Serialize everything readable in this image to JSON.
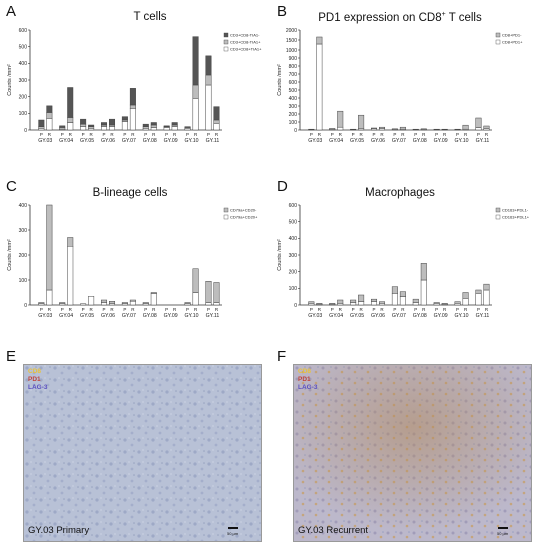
{
  "panels": {
    "A": {
      "letter": "A",
      "title": "T cells"
    },
    "B": {
      "letter": "B",
      "title_prefix": "PD1 expression on CD8",
      "title_sup": "+",
      "title_suffix": " T cells"
    },
    "C": {
      "letter": "C",
      "title": "B-lineage cells"
    },
    "D": {
      "letter": "D",
      "title": "Macrophages"
    },
    "E": {
      "letter": "E",
      "legend": [
        "CD8",
        "PD1",
        "LAG-3"
      ],
      "legend_colors": [
        "#e8c23a",
        "#c0423a",
        "#5a4fc0"
      ],
      "caption": "GY.03 Primary",
      "scale": "50 µm"
    },
    "F": {
      "letter": "F",
      "legend": [
        "CD8",
        "PD1",
        "LAG-3"
      ],
      "legend_colors": [
        "#e8c23a",
        "#c0423a",
        "#5a4fc0"
      ],
      "caption": "GY.03 Recurrent",
      "scale": "50 µm"
    }
  },
  "chart_data": [
    {
      "id": "A",
      "type": "bar",
      "stacked": true,
      "grouped_pairs": true,
      "title": "T cells",
      "ylabel": "Counts /mm²",
      "ylim": [
        0,
        600
      ],
      "yticks": [
        0,
        100,
        200,
        300,
        400,
        500,
        600
      ],
      "groups": [
        "GY.03",
        "GY.04",
        "GY.05",
        "GY.06",
        "GY.07",
        "GY.08",
        "GY.09",
        "GY.10",
        "GY.11"
      ],
      "pair_labels": [
        "P",
        "R"
      ],
      "series": [
        {
          "name": "CD3+CD8+TIA1+",
          "color": "#ffffff",
          "values": [
            [
              10,
              70
            ],
            [
              5,
              45
            ],
            [
              20,
              10
            ],
            [
              20,
              20
            ],
            [
              50,
              130
            ],
            [
              10,
              15
            ],
            [
              15,
              20
            ],
            [
              10,
              190
            ],
            [
              270,
              40
            ]
          ]
        },
        {
          "name": "CD3+CD8-TIA1+",
          "color": "#bdbdbd",
          "values": [
            [
              10,
              35
            ],
            [
              10,
              30
            ],
            [
              15,
              10
            ],
            [
              10,
              10
            ],
            [
              10,
              20
            ],
            [
              10,
              15
            ],
            [
              5,
              10
            ],
            [
              5,
              80
            ],
            [
              60,
              20
            ]
          ]
        },
        {
          "name": "CD3+CD8-TIA1-",
          "color": "#555555",
          "values": [
            [
              40,
              40
            ],
            [
              10,
              180
            ],
            [
              30,
              10
            ],
            [
              15,
              35
            ],
            [
              20,
              100
            ],
            [
              15,
              15
            ],
            [
              5,
              15
            ],
            [
              5,
              290
            ],
            [
              115,
              80
            ]
          ]
        }
      ]
    },
    {
      "id": "B",
      "type": "bar",
      "stacked": true,
      "grouped_pairs": true,
      "title": "PD1 expression on CD8+ T cells",
      "ylabel": "Counts /mm²",
      "ylim": [
        0,
        2000
      ],
      "axis_break": {
        "lower_max": 1000,
        "upper_min": 1500
      },
      "yticks": [
        0,
        100,
        200,
        300,
        400,
        500,
        600,
        700,
        800,
        900,
        1000,
        1500,
        2000
      ],
      "groups": [
        "GY.03",
        "GY.04",
        "GY.05",
        "GY.06",
        "GY.07",
        "GY.08",
        "GY.09",
        "GY.10",
        "GY.11"
      ],
      "pair_labels": [
        "P",
        "R"
      ],
      "series": [
        {
          "name": "CD8+PD1+",
          "color": "#ffffff",
          "values": [
            [
              5,
              1300
            ],
            [
              10,
              35
            ],
            [
              5,
              15
            ],
            [
              15,
              20
            ],
            [
              5,
              10
            ],
            [
              5,
              5
            ],
            [
              5,
              5
            ],
            [
              5,
              10
            ],
            [
              30,
              20
            ]
          ]
        },
        {
          "name": "CD8+PD1-",
          "color": "#bdbdbd",
          "values": [
            [
              5,
              350
            ],
            [
              10,
              200
            ],
            [
              5,
              170
            ],
            [
              10,
              15
            ],
            [
              10,
              25
            ],
            [
              5,
              10
            ],
            [
              5,
              5
            ],
            [
              5,
              50
            ],
            [
              120,
              30
            ]
          ]
        }
      ]
    },
    {
      "id": "C",
      "type": "bar",
      "stacked": true,
      "grouped_pairs": true,
      "title": "B-lineage cells",
      "ylabel": "Counts /mm²",
      "ylim": [
        0,
        400
      ],
      "yticks": [
        0,
        100,
        200,
        300,
        400
      ],
      "groups": [
        "GY.03",
        "GY.04",
        "GY.05",
        "GY.06",
        "GY.07",
        "GY.08",
        "GY.09",
        "GY.10",
        "GY.11"
      ],
      "pair_labels": [
        "P",
        "R"
      ],
      "series": [
        {
          "name": "CD79a+CD20+",
          "color": "#ffffff",
          "values": [
            [
              5,
              60
            ],
            [
              5,
              235
            ],
            [
              5,
              35
            ],
            [
              10,
              5
            ],
            [
              5,
              15
            ],
            [
              5,
              45
            ],
            [
              0,
              0
            ],
            [
              5,
              50
            ],
            [
              10,
              10
            ]
          ]
        },
        {
          "name": "CD79a+CD20-",
          "color": "#bdbdbd",
          "values": [
            [
              5,
              340
            ],
            [
              5,
              35
            ],
            [
              0,
              0
            ],
            [
              10,
              10
            ],
            [
              5,
              5
            ],
            [
              5,
              5
            ],
            [
              0,
              0
            ],
            [
              5,
              95
            ],
            [
              85,
              80
            ]
          ]
        }
      ]
    },
    {
      "id": "D",
      "type": "bar",
      "stacked": true,
      "grouped_pairs": true,
      "title": "Macrophages",
      "ylabel": "Counts /mm²",
      "ylim": [
        0,
        600
      ],
      "yticks": [
        0,
        100,
        200,
        300,
        400,
        500,
        600
      ],
      "groups": [
        "GY.03",
        "GY.04",
        "GY.05",
        "GY.06",
        "GY.07",
        "GY.08",
        "GY.09",
        "GY.10",
        "GY.11"
      ],
      "pair_labels": [
        "P",
        "R"
      ],
      "series": [
        {
          "name": "CD163+PDL1+",
          "color": "#ffffff",
          "values": [
            [
              10,
              5
            ],
            [
              5,
              10
            ],
            [
              15,
              20
            ],
            [
              20,
              10
            ],
            [
              70,
              50
            ],
            [
              15,
              150
            ],
            [
              10,
              5
            ],
            [
              10,
              40
            ],
            [
              70,
              90
            ]
          ]
        },
        {
          "name": "CD163+PDL1-",
          "color": "#bdbdbd",
          "values": [
            [
              10,
              5
            ],
            [
              5,
              20
            ],
            [
              15,
              40
            ],
            [
              15,
              10
            ],
            [
              40,
              30
            ],
            [
              20,
              100
            ],
            [
              5,
              5
            ],
            [
              10,
              35
            ],
            [
              20,
              35
            ]
          ]
        }
      ]
    }
  ]
}
